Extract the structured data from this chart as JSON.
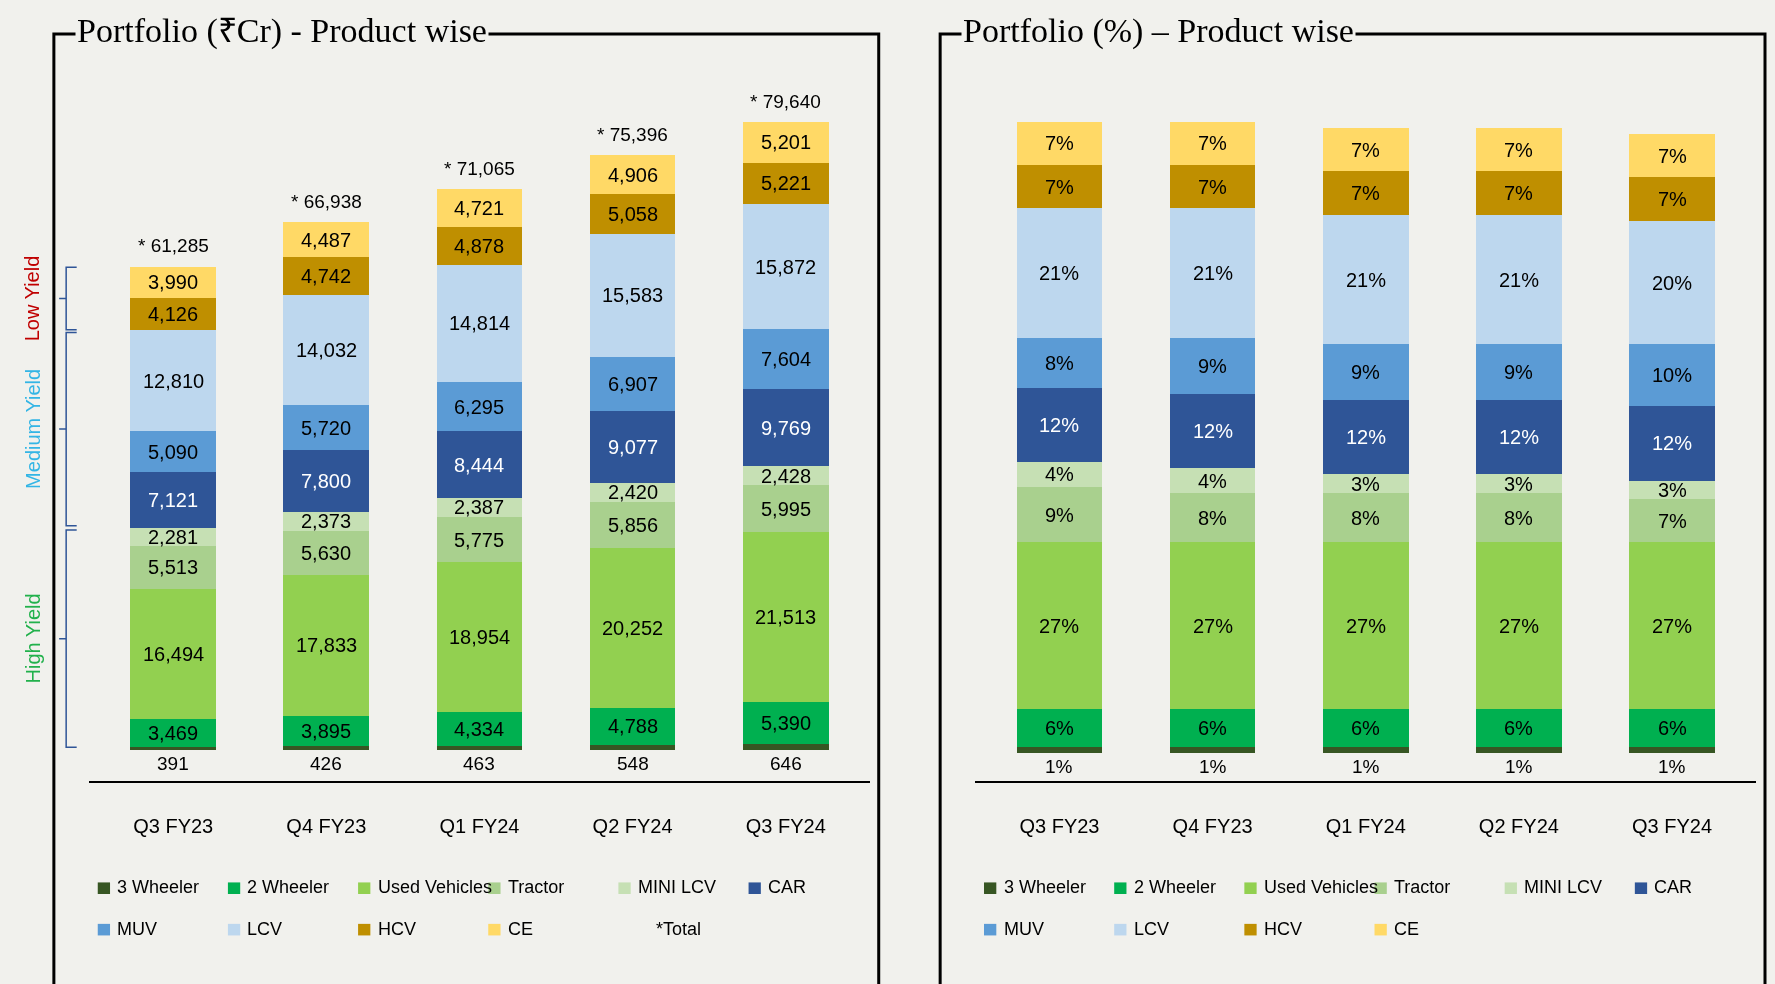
{
  "chart_data": [
    {
      "type": "bar",
      "title": "Portfolio (₹Cr) - Product wise",
      "stacked": true,
      "legend": "bottom",
      "categories": [
        "Q3 FY23",
        "Q4 FY23",
        "Q1 FY24",
        "Q2 FY24",
        "Q3 FY24"
      ],
      "series": [
        {
          "name": "3 Wheeler",
          "color": "#375623",
          "values": [
            391,
            426,
            463,
            548,
            646
          ],
          "value_labels": [
            "391",
            "426",
            "463",
            "548",
            "646"
          ]
        },
        {
          "name": "2 Wheeler",
          "color": "#00b050",
          "values": [
            3469,
            3895,
            4334,
            4788,
            5390
          ],
          "value_labels": [
            "3,469",
            "3,895",
            "4,334",
            "4,788",
            "5,390"
          ]
        },
        {
          "name": "Used Vehicles",
          "color": "#92d050",
          "values": [
            16494,
            17833,
            18954,
            20252,
            21513
          ],
          "value_labels": [
            "16,494",
            "17,833",
            "18,954",
            "20,252",
            "21,513"
          ]
        },
        {
          "name": "Tractor",
          "color": "#a9d08e",
          "values": [
            5513,
            5630,
            5775,
            5856,
            5995
          ],
          "value_labels": [
            "5,513",
            "5,630",
            "5,775",
            "5,856",
            "5,995"
          ]
        },
        {
          "name": "MINI LCV",
          "color": "#c6e0b4",
          "values": [
            2281,
            2373,
            2387,
            2420,
            2428
          ],
          "value_labels": [
            "2,281",
            "2,373",
            "2,387",
            "2,420",
            "2,428"
          ]
        },
        {
          "name": "CAR",
          "color": "#2f5597",
          "values": [
            7121,
            7800,
            8444,
            9077,
            9769
          ],
          "value_labels": [
            "7,121",
            "7,800",
            "8,444",
            "9,077",
            "9,769"
          ]
        },
        {
          "name": "MUV",
          "color": "#5b9bd5",
          "values": [
            5090,
            5720,
            6295,
            6907,
            7604
          ],
          "value_labels": [
            "5,090",
            "5,720",
            "6,295",
            "6,907",
            "7,604"
          ]
        },
        {
          "name": "LCV",
          "color": "#bdd7ee",
          "values": [
            12810,
            14032,
            14814,
            15583,
            15872
          ],
          "value_labels": [
            "12,810",
            "14,032",
            "14,814",
            "15,583",
            "15,872"
          ]
        },
        {
          "name": "HCV",
          "color": "#bf8f00",
          "values": [
            4126,
            4742,
            4878,
            5058,
            5221
          ],
          "value_labels": [
            "4,126",
            "4,742",
            "4,878",
            "5,058",
            "5,221"
          ]
        },
        {
          "name": "CE",
          "color": "#ffd966",
          "values": [
            3990,
            4487,
            4721,
            4906,
            5201
          ],
          "value_labels": [
            "3,990",
            "4,487",
            "4,721",
            "4,906",
            "5,201"
          ]
        }
      ],
      "totals": [
        "* 61,285",
        "* 66,938",
        "* 71,065",
        "* 75,396",
        "* 79,640"
      ],
      "annotations": [
        "Low Yield",
        "Medium Yield",
        "High Yield",
        "*Total"
      ]
    },
    {
      "type": "bar",
      "title": "Portfolio (%) – Product wise",
      "stacked": true,
      "legend": "bottom",
      "categories": [
        "Q3 FY23",
        "Q4 FY23",
        "Q1 FY24",
        "Q2 FY24",
        "Q3 FY24"
      ],
      "series": [
        {
          "name": "3 Wheeler",
          "color": "#375623",
          "values": [
            1,
            1,
            1,
            1,
            1
          ],
          "value_labels": [
            "1%",
            "1%",
            "1%",
            "1%",
            "1%"
          ]
        },
        {
          "name": "2 Wheeler",
          "color": "#00b050",
          "values": [
            6,
            6,
            6,
            6,
            6
          ],
          "value_labels": [
            "6%",
            "6%",
            "6%",
            "6%",
            "6%"
          ]
        },
        {
          "name": "Used Vehicles",
          "color": "#92d050",
          "values": [
            27,
            27,
            27,
            27,
            27
          ],
          "value_labels": [
            "27%",
            "27%",
            "27%",
            "27%",
            "27%"
          ]
        },
        {
          "name": "Tractor",
          "color": "#a9d08e",
          "values": [
            9,
            8,
            8,
            8,
            7
          ],
          "value_labels": [
            "9%",
            "8%",
            "8%",
            "8%",
            "7%"
          ]
        },
        {
          "name": "MINI LCV",
          "color": "#c6e0b4",
          "values": [
            4,
            4,
            3,
            3,
            3
          ],
          "value_labels": [
            "4%",
            "4%",
            "3%",
            "3%",
            "3%"
          ]
        },
        {
          "name": "CAR",
          "color": "#2f5597",
          "values": [
            12,
            12,
            12,
            12,
            12
          ],
          "value_labels": [
            "12%",
            "12%",
            "12%",
            "12%",
            "12%"
          ]
        },
        {
          "name": "MUV",
          "color": "#5b9bd5",
          "values": [
            8,
            9,
            9,
            9,
            10
          ],
          "value_labels": [
            "8%",
            "9%",
            "9%",
            "9%",
            "10%"
          ]
        },
        {
          "name": "LCV",
          "color": "#bdd7ee",
          "values": [
            21,
            21,
            21,
            21,
            20
          ],
          "value_labels": [
            "21%",
            "21%",
            "21%",
            "21%",
            "20%"
          ]
        },
        {
          "name": "HCV",
          "color": "#bf8f00",
          "values": [
            7,
            7,
            7,
            7,
            7
          ],
          "value_labels": [
            "7%",
            "7%",
            "7%",
            "7%",
            "7%"
          ]
        },
        {
          "name": "CE",
          "color": "#ffd966",
          "values": [
            7,
            7,
            7,
            7,
            7
          ],
          "value_labels": [
            "7%",
            "7%",
            "7%",
            "7%",
            "7%"
          ]
        }
      ]
    }
  ]
}
